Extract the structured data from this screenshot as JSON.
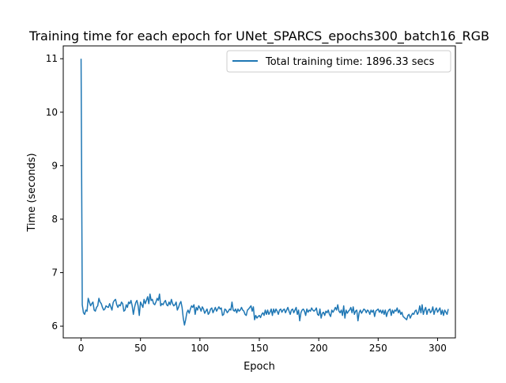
{
  "chart_data": {
    "type": "line",
    "title": "Training time for each epoch for UNet_SPARCS_epochs300_batch16_RGB",
    "xlabel": "Epoch",
    "ylabel": "Time (seconds)",
    "xlim": [
      -15,
      315
    ],
    "ylim": [
      5.78,
      11.24
    ],
    "xticks": [
      0,
      50,
      100,
      150,
      200,
      250,
      300
    ],
    "xtick_labels": [
      "0",
      "50",
      "100",
      "150",
      "200",
      "250",
      "300"
    ],
    "yticks": [
      6,
      7,
      8,
      9,
      10,
      11
    ],
    "ytick_labels": [
      "6",
      "7",
      "8",
      "9",
      "10",
      "11"
    ],
    "grid": false,
    "legend_position": "upper right",
    "series": [
      {
        "name": "Total training time: 1896.33 secs",
        "color": "#1f77b4",
        "x_start": 0,
        "x_step": 1,
        "values": [
          11.0,
          6.4,
          6.25,
          6.22,
          6.3,
          6.28,
          6.52,
          6.45,
          6.38,
          6.42,
          6.45,
          6.3,
          6.28,
          6.35,
          6.38,
          6.52,
          6.45,
          6.42,
          6.35,
          6.3,
          6.32,
          6.38,
          6.36,
          6.35,
          6.42,
          6.36,
          6.3,
          6.44,
          6.48,
          6.5,
          6.4,
          6.35,
          6.4,
          6.38,
          6.45,
          6.42,
          6.28,
          6.3,
          6.4,
          6.35,
          6.45,
          6.42,
          6.48,
          6.38,
          6.22,
          6.35,
          6.44,
          6.48,
          6.38,
          6.2,
          6.45,
          6.4,
          6.35,
          6.5,
          6.42,
          6.48,
          6.55,
          6.42,
          6.6,
          6.48,
          6.5,
          6.42,
          6.4,
          6.45,
          6.52,
          6.48,
          6.6,
          6.38,
          6.42,
          6.4,
          6.45,
          6.48,
          6.4,
          6.38,
          6.45,
          6.4,
          6.5,
          6.42,
          6.38,
          6.4,
          6.45,
          6.3,
          6.35,
          6.42,
          6.46,
          6.35,
          6.15,
          6.02,
          6.12,
          6.25,
          6.3,
          6.24,
          6.32,
          6.38,
          6.35,
          6.4,
          6.22,
          6.35,
          6.3,
          6.38,
          6.34,
          6.28,
          6.36,
          6.32,
          6.24,
          6.28,
          6.32,
          6.22,
          6.25,
          6.32,
          6.34,
          6.25,
          6.3,
          6.35,
          6.28,
          6.32,
          6.36,
          6.32,
          6.34,
          6.2,
          6.22,
          6.32,
          6.3,
          6.25,
          6.28,
          6.32,
          6.3,
          6.45,
          6.3,
          6.28,
          6.32,
          6.25,
          6.32,
          6.28,
          6.3,
          6.35,
          6.3,
          6.28,
          6.22,
          6.2,
          6.3,
          6.32,
          6.35,
          6.38,
          6.28,
          6.36,
          6.12,
          6.2,
          6.15,
          6.18,
          6.2,
          6.16,
          6.22,
          6.25,
          6.2,
          6.3,
          6.22,
          6.3,
          6.22,
          6.26,
          6.32,
          6.2,
          6.32,
          6.25,
          6.32,
          6.28,
          6.22,
          6.3,
          6.32,
          6.26,
          6.3,
          6.32,
          6.25,
          6.3,
          6.35,
          6.28,
          6.22,
          6.3,
          6.32,
          6.25,
          6.3,
          6.35,
          6.22,
          6.3,
          6.1,
          6.25,
          6.3,
          6.32,
          6.28,
          6.2,
          6.32,
          6.26,
          6.3,
          6.28,
          6.34,
          6.3,
          6.28,
          6.3,
          6.34,
          6.22,
          6.2,
          6.32,
          6.15,
          6.24,
          6.26,
          6.2,
          6.28,
          6.25,
          6.3,
          6.22,
          6.18,
          6.3,
          6.26,
          6.3,
          6.35,
          6.3,
          6.4,
          6.28,
          6.25,
          6.3,
          6.2,
          6.38,
          6.15,
          6.3,
          6.24,
          6.28,
          6.3,
          6.35,
          6.25,
          6.36,
          6.22,
          6.28,
          6.3,
          6.1,
          6.25,
          6.3,
          6.24,
          6.28,
          6.32,
          6.3,
          6.25,
          6.3,
          6.28,
          6.22,
          6.3,
          6.26,
          6.3,
          6.18,
          6.28,
          6.3,
          6.32,
          6.26,
          6.3,
          6.24,
          6.3,
          6.22,
          6.3,
          6.18,
          6.26,
          6.3,
          6.32,
          6.2,
          6.3,
          6.24,
          6.3,
          6.28,
          6.34,
          6.25,
          6.3,
          6.22,
          6.26,
          6.18,
          6.16,
          6.14,
          6.12,
          6.2,
          6.22,
          6.15,
          6.2,
          6.24,
          6.22,
          6.28,
          6.3,
          6.22,
          6.26,
          6.38,
          6.25,
          6.4,
          6.22,
          6.3,
          6.35,
          6.22,
          6.3,
          6.32,
          6.25,
          6.28,
          6.36,
          6.22,
          6.3,
          6.34,
          6.26,
          6.3,
          6.34,
          6.22,
          6.3,
          6.2,
          6.3,
          6.26,
          6.22,
          6.32
        ]
      }
    ]
  }
}
